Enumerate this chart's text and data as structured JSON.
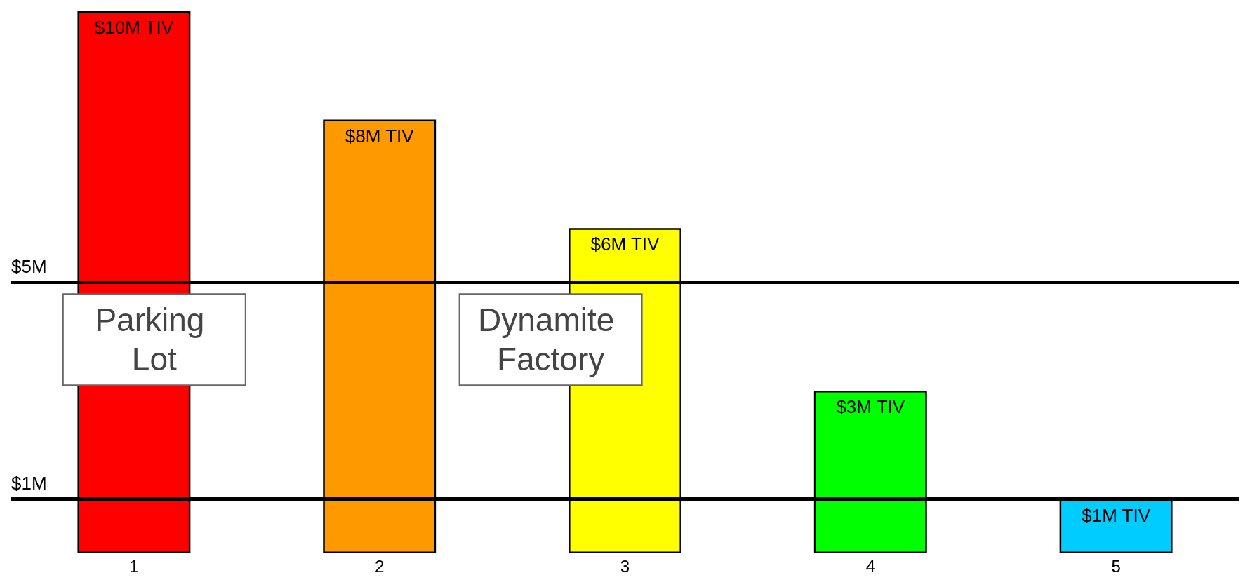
{
  "chart_data": {
    "type": "bar",
    "categories": [
      "1",
      "2",
      "3",
      "4",
      "5"
    ],
    "values": [
      10,
      8,
      6,
      3,
      1
    ],
    "colors": [
      "#ff0000",
      "#ff9900",
      "#ffff00",
      "#00ff00",
      "#00ccff"
    ],
    "value_labels": [
      "$10M TIV",
      "$8M TIV",
      "$6M TIV",
      "$3M TIV",
      "$1M TIV"
    ],
    "ref_lines": [
      {
        "axis": "y",
        "value": 5,
        "label": "$5M",
        "color": "#000000"
      },
      {
        "axis": "y",
        "value": 1,
        "label": "$1M",
        "color": "#000000"
      }
    ],
    "annotations": [
      "Parking Lot",
      "Dynamite Factory"
    ],
    "grid": false
  }
}
